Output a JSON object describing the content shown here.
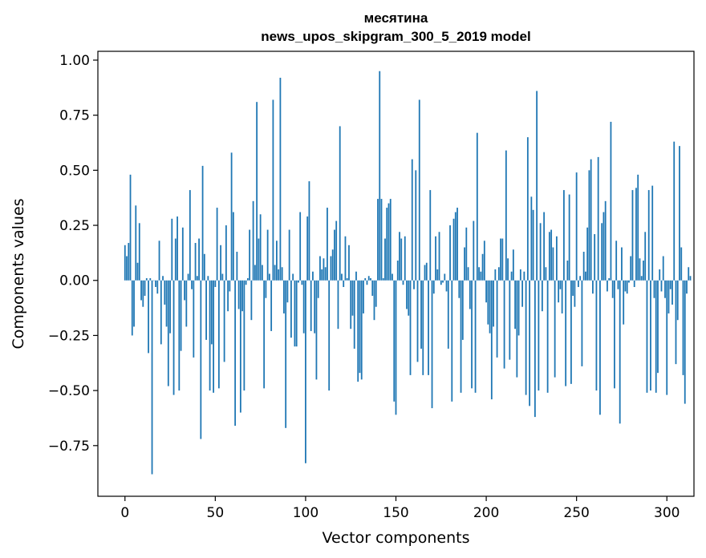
{
  "chart_data": {
    "type": "bar",
    "title_lines": [
      "месятина",
      "news_upos_skipgram_300_5_2019 model"
    ],
    "xlabel": "Vector components",
    "ylabel": "Components values",
    "xlim": [
      -15,
      315
    ],
    "ylim": [
      -0.98,
      1.04
    ],
    "xticks": [
      0,
      50,
      100,
      150,
      200,
      250,
      300
    ],
    "yticks": [
      -0.75,
      -0.5,
      -0.25,
      0.0,
      0.25,
      0.5,
      0.75,
      1.0
    ],
    "xtick_labels": [
      "0",
      "50",
      "100",
      "150",
      "200",
      "250",
      "300"
    ],
    "ytick_labels": [
      "−0.75",
      "−0.50",
      "−0.25",
      "0.00",
      "0.25",
      "0.50",
      "0.75",
      "1.00"
    ],
    "grid": false,
    "bar_color": "#1f77b4",
    "values": [
      0.16,
      0.11,
      0.17,
      0.48,
      -0.25,
      -0.21,
      0.34,
      0.08,
      0.26,
      -0.09,
      -0.12,
      -0.07,
      0.01,
      -0.33,
      0.01,
      -0.88,
      0.0,
      -0.03,
      -0.06,
      0.18,
      -0.29,
      0.02,
      -0.11,
      -0.21,
      -0.48,
      -0.24,
      0.28,
      -0.52,
      0.19,
      0.29,
      -0.5,
      -0.32,
      0.24,
      -0.09,
      -0.21,
      0.03,
      0.41,
      -0.04,
      -0.35,
      0.17,
      0.02,
      0.19,
      -0.72,
      0.52,
      0.12,
      -0.27,
      0.02,
      -0.5,
      -0.29,
      -0.51,
      -0.03,
      0.33,
      -0.49,
      0.16,
      0.03,
      -0.37,
      0.25,
      -0.14,
      -0.05,
      0.58,
      0.31,
      -0.66,
      0.13,
      -0.13,
      -0.6,
      -0.14,
      -0.5,
      -0.02,
      0.01,
      0.23,
      -0.18,
      0.36,
      0.07,
      0.81,
      0.19,
      0.3,
      0.07,
      -0.49,
      -0.08,
      0.23,
      0.03,
      -0.23,
      0.82,
      0.07,
      0.18,
      0.05,
      0.92,
      0.06,
      -0.15,
      -0.67,
      -0.1,
      0.23,
      -0.26,
      0.03,
      -0.3,
      -0.3,
      -0.01,
      0.31,
      -0.02,
      -0.24,
      -0.83,
      0.29,
      0.45,
      -0.23,
      0.04,
      -0.24,
      -0.45,
      -0.08,
      0.11,
      0.05,
      0.1,
      0.06,
      0.33,
      -0.5,
      0.11,
      0.14,
      0.23,
      0.27,
      -0.22,
      0.7,
      0.03,
      -0.03,
      0.2,
      0.01,
      0.16,
      -0.22,
      -0.16,
      -0.31,
      0.04,
      -0.46,
      -0.42,
      -0.45,
      -0.15,
      0.01,
      -0.02,
      0.02,
      0.01,
      -0.07,
      -0.18,
      -0.12,
      0.37,
      0.95,
      0.37,
      0.01,
      0.19,
      0.33,
      0.35,
      0.37,
      0.03,
      -0.55,
      -0.61,
      0.09,
      0.22,
      0.19,
      -0.02,
      0.2,
      -0.13,
      -0.16,
      -0.43,
      0.55,
      -0.04,
      0.5,
      -0.37,
      0.82,
      -0.31,
      -0.43,
      0.07,
      0.08,
      -0.43,
      0.41,
      -0.58,
      -0.06,
      0.2,
      0.05,
      0.22,
      -0.02,
      -0.01,
      0.03,
      -0.05,
      -0.31,
      0.25,
      -0.55,
      0.28,
      0.31,
      0.33,
      -0.08,
      -0.51,
      -0.27,
      0.15,
      0.24,
      0.06,
      -0.13,
      -0.49,
      0.27,
      -0.51,
      0.67,
      0.06,
      0.04,
      0.12,
      0.18,
      -0.1,
      -0.2,
      -0.24,
      -0.54,
      -0.21,
      0.05,
      -0.35,
      0.06,
      0.19,
      0.19,
      -0.4,
      0.59,
      0.1,
      -0.36,
      0.04,
      0.14,
      -0.22,
      -0.44,
      -0.25,
      0.05,
      -0.12,
      0.04,
      -0.52,
      0.65,
      -0.57,
      0.38,
      0.32,
      -0.62,
      0.86,
      -0.5,
      0.26,
      -0.14,
      0.31,
      0.06,
      -0.51,
      0.22,
      0.23,
      0.15,
      -0.44,
      0.2,
      -0.1,
      -0.04,
      -0.15,
      0.41,
      -0.48,
      0.09,
      0.39,
      -0.47,
      -0.07,
      -0.12,
      0.49,
      -0.03,
      0.02,
      -0.39,
      0.13,
      0.04,
      0.24,
      0.5,
      0.55,
      -0.06,
      0.21,
      -0.5,
      0.56,
      -0.61,
      0.26,
      0.31,
      0.36,
      -0.05,
      0.01,
      0.72,
      -0.08,
      -0.49,
      0.18,
      -0.04,
      -0.65,
      0.15,
      -0.2,
      -0.05,
      -0.06,
      -0.01,
      0.11,
      0.41,
      -0.03,
      0.42,
      0.48,
      0.1,
      0.02,
      0.09,
      0.22,
      -0.51,
      0.41,
      -0.5,
      0.43,
      -0.08,
      -0.51,
      -0.42,
      0.05,
      -0.05,
      0.11,
      -0.08,
      -0.52,
      -0.15,
      -0.04,
      -0.11,
      0.63,
      -0.38,
      -0.18,
      0.61,
      0.15,
      -0.43,
      -0.56,
      -0.06,
      0.06,
      0.02
    ]
  }
}
